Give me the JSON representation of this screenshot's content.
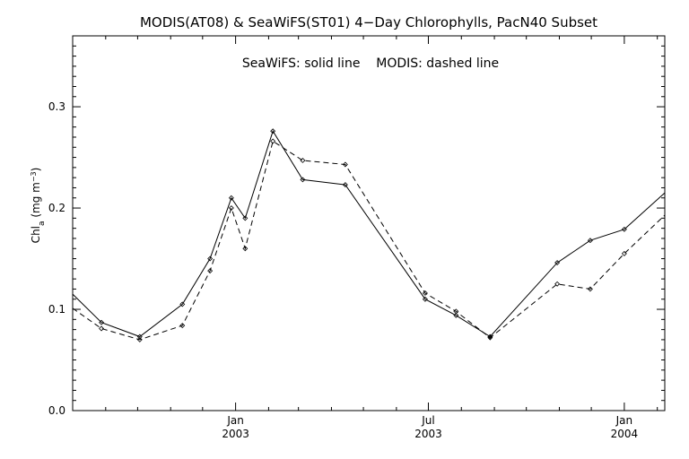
{
  "chart_data": {
    "type": "line",
    "title": "MODIS(AT08) & SeaWiFS(ST01) 4−Day Chlorophylls, PacN40 Subset",
    "annotation": "SeaWiFS: solid line    MODIS: dashed line",
    "ylabel": "Chl_a (mg m^-3)",
    "ylabel_main": "Chl",
    "ylabel_sub": "a",
    "ylabel_unit": " (mg m",
    "ylabel_exp": "−3",
    "ylabel_close": ")",
    "xlabel": "",
    "ylim": [
      0.0,
      0.37
    ],
    "yticks": [
      {
        "value": 0.0,
        "label": "0.0"
      },
      {
        "value": 0.1,
        "label": "0.1"
      },
      {
        "value": 0.2,
        "label": "0.2"
      },
      {
        "value": 0.3,
        "label": "0.3"
      }
    ],
    "xlim": [
      "2002-08-01",
      "2004-02-08"
    ],
    "xticks": [
      {
        "date": "2003-01-01",
        "line1": "Jan",
        "line2": "2003"
      },
      {
        "date": "2003-07-01",
        "line1": "Jul",
        "line2": "2003"
      },
      {
        "date": "2004-01-01",
        "line1": "Jan",
        "line2": "2004"
      }
    ],
    "minor_xticks": [
      "2002-09-01",
      "2002-10-01",
      "2002-11-01",
      "2002-12-01",
      "2003-02-01",
      "2003-03-01",
      "2003-04-01",
      "2003-05-01",
      "2003-06-01",
      "2003-08-01",
      "2003-09-01",
      "2003-10-01",
      "2003-11-01",
      "2003-12-01",
      "2004-02-01"
    ],
    "series": [
      {
        "name": "SeaWiFS",
        "style": "solid",
        "color": "#000000",
        "x": [
          "2002-08-01",
          "2002-08-28",
          "2002-10-03",
          "2002-11-12",
          "2002-12-08",
          "2002-12-28",
          "2003-01-10",
          "2003-02-05",
          "2003-03-05",
          "2003-04-14",
          "2003-06-28",
          "2003-07-27",
          "2003-08-28",
          "2003-10-30",
          "2003-11-30",
          "2004-01-01",
          "2004-02-08"
        ],
        "values": [
          0.115,
          0.087,
          0.073,
          0.105,
          0.15,
          0.21,
          0.19,
          0.276,
          0.228,
          0.223,
          0.11,
          0.094,
          0.073,
          0.146,
          0.168,
          0.179,
          0.215
        ]
      },
      {
        "name": "MODIS",
        "style": "dashed",
        "color": "#000000",
        "x": [
          "2002-08-01",
          "2002-08-28",
          "2002-10-03",
          "2002-11-12",
          "2002-12-08",
          "2002-12-28",
          "2003-01-10",
          "2003-02-05",
          "2003-03-05",
          "2003-04-14",
          "2003-06-28",
          "2003-07-27",
          "2003-08-28",
          "2003-10-30",
          "2003-11-30",
          "2004-01-01",
          "2004-02-08"
        ],
        "values": [
          0.101,
          0.081,
          0.07,
          0.084,
          0.138,
          0.2,
          0.16,
          0.266,
          0.247,
          0.243,
          0.116,
          0.098,
          0.072,
          0.125,
          0.12,
          0.155,
          0.193
        ]
      }
    ],
    "markers_on_points": true,
    "grid": false
  }
}
